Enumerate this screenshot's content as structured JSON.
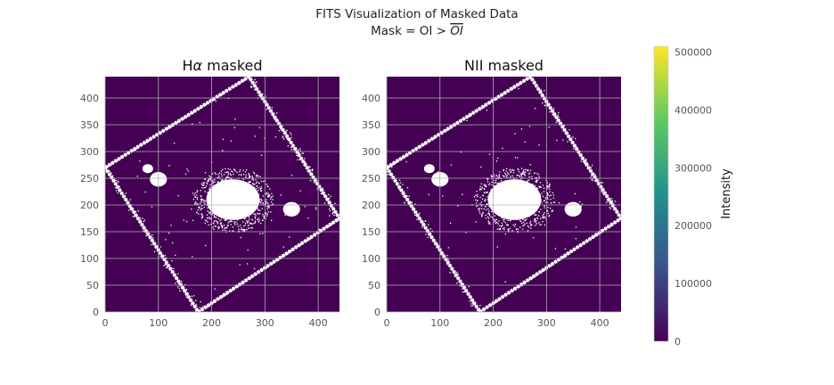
{
  "figure": {
    "suptitle_line1": "FITS Visualization of Masked Data",
    "suptitle_line2_prefix": "Mask = OI > ",
    "suptitle_line2_overlined": "OI"
  },
  "colors": {
    "background_fill": "#440154",
    "masked_fill": "#ffffff",
    "grid": "#b0b0b0",
    "colormap": [
      "#440154",
      "#3b528b",
      "#21918c",
      "#5ec962",
      "#fde725"
    ]
  },
  "chart_data": [
    {
      "type": "heatmap",
      "title_main": "H",
      "title_symbol": "α",
      "title_rest": " masked",
      "xlim": [
        0,
        440
      ],
      "ylim": [
        0,
        440
      ],
      "xticks": [
        0,
        100,
        200,
        300,
        400
      ],
      "yticks": [
        0,
        50,
        100,
        150,
        200,
        250,
        300,
        350,
        400
      ],
      "grid": true
    },
    {
      "type": "heatmap",
      "title_main": "NII masked",
      "title_symbol": "",
      "title_rest": "",
      "xlim": [
        0,
        440
      ],
      "ylim": [
        0,
        440
      ],
      "xticks": [
        0,
        100,
        200,
        300,
        400
      ],
      "yticks": [
        0,
        50,
        100,
        150,
        200,
        250,
        300,
        350,
        400
      ],
      "grid": true
    }
  ],
  "colorbar": {
    "label": "Intensity",
    "min": 0,
    "max": 510000,
    "ticks": [
      0,
      100000,
      200000,
      300000,
      400000,
      500000
    ]
  },
  "mask_shapes": {
    "frame_corners": [
      [
        0,
        270
      ],
      [
        270,
        440
      ],
      [
        440,
        175
      ],
      [
        175,
        0
      ]
    ],
    "galaxy_center": [
      240,
      210
    ],
    "galaxy_radii": [
      50,
      38
    ],
    "small_blob_left": {
      "center": [
        100,
        248
      ],
      "r": 16
    },
    "small_blob_left_top": {
      "center": [
        80,
        268
      ],
      "r": 10
    },
    "small_blob_right": {
      "center": [
        350,
        192
      ],
      "r": 16
    }
  }
}
